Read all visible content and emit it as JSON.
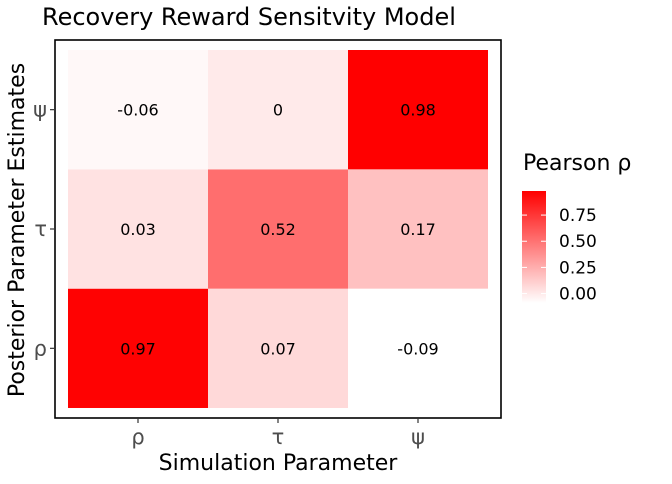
{
  "chart_data": {
    "type": "heatmap",
    "title": "Recovery Reward Sensitvity Model",
    "xlabel": "Simulation Parameter",
    "ylabel": "Posterior Parameter Estimates",
    "x_categories": [
      "ρ",
      "τ",
      "ψ"
    ],
    "y_categories": [
      "ρ",
      "τ",
      "ψ"
    ],
    "cells": [
      {
        "x": "ρ",
        "y": "ρ",
        "value": 0.97,
        "label": "0.97"
      },
      {
        "x": "τ",
        "y": "ρ",
        "value": 0.07,
        "label": "0.07"
      },
      {
        "x": "ψ",
        "y": "ρ",
        "value": -0.09,
        "label": "-0.09"
      },
      {
        "x": "ρ",
        "y": "τ",
        "value": 0.03,
        "label": "0.03"
      },
      {
        "x": "τ",
        "y": "τ",
        "value": 0.52,
        "label": "0.52"
      },
      {
        "x": "ψ",
        "y": "τ",
        "value": 0.17,
        "label": "0.17"
      },
      {
        "x": "ρ",
        "y": "ψ",
        "value": -0.06,
        "label": "-0.06"
      },
      {
        "x": "τ",
        "y": "ψ",
        "value": 0,
        "label": "0"
      },
      {
        "x": "ψ",
        "y": "ψ",
        "value": 0.98,
        "label": "0.98"
      }
    ],
    "color_scale": {
      "low_color": "#ffffff",
      "high_color": "#ff0000",
      "min": -0.09,
      "max": 0.98
    },
    "legend": {
      "title": "Pearson ρ",
      "ticks": [
        {
          "value": 0.75,
          "label": "0.75"
        },
        {
          "value": 0.5,
          "label": "0.50"
        },
        {
          "value": 0.25,
          "label": "0.25"
        },
        {
          "value": 0,
          "label": "0.00"
        }
      ],
      "placement": "right"
    },
    "grid": false
  }
}
